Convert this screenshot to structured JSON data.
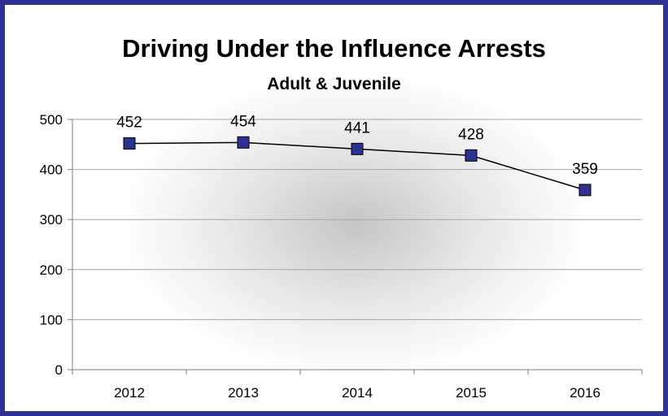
{
  "chart_data": {
    "type": "line",
    "title": "Driving Under the Influence Arrests",
    "subtitle": "Adult & Juvenile",
    "categories": [
      "2012",
      "2013",
      "2014",
      "2015",
      "2016"
    ],
    "series": [
      {
        "values": [
          452,
          454,
          441,
          428,
          359
        ]
      }
    ],
    "data_labels": [
      "452",
      "454",
      "441",
      "428",
      "359"
    ],
    "y_ticks": [
      "0",
      "100",
      "200",
      "300",
      "400",
      "500"
    ],
    "ylim": [
      0,
      500
    ],
    "grid": true,
    "legend": "none",
    "marker": "square",
    "colors": {
      "frame": "#2e3192",
      "marker": "#2e3192",
      "line": "#000000",
      "grid": "#a6a6a6"
    }
  }
}
